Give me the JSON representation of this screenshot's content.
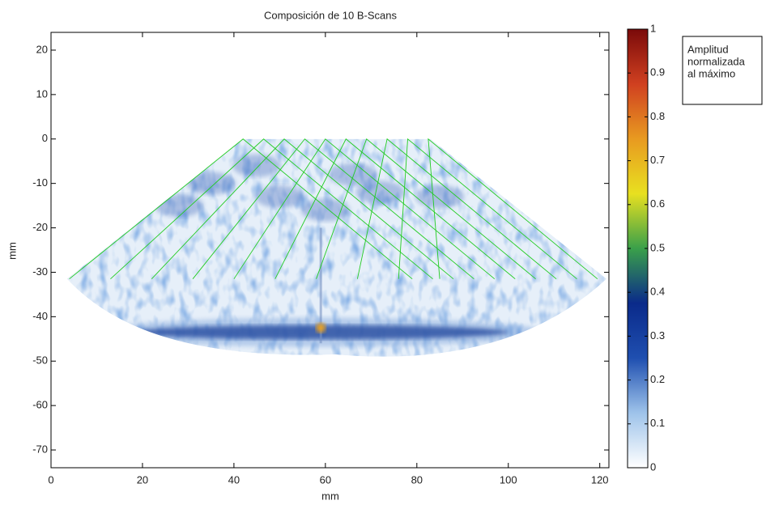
{
  "chart_data": {
    "type": "heatmap",
    "title": "Composición de 10 B-Scans",
    "xlabel": "mm",
    "ylabel": "mm",
    "xlim": [
      0,
      122
    ],
    "xticks": [
      0,
      20,
      40,
      60,
      80,
      100,
      120
    ],
    "ylim": [
      -74,
      24
    ],
    "yticks": [
      20,
      10,
      0,
      -10,
      -20,
      -30,
      -40,
      -50,
      -60,
      -70
    ],
    "colorbar": {
      "label": [
        "Amplitud",
        "normalizada",
        "al máximo"
      ],
      "lim": [
        0,
        1
      ],
      "ticks": [
        0,
        0.1,
        0.2,
        0.3,
        0.4,
        0.5,
        0.6,
        0.7,
        0.8,
        0.9,
        1
      ],
      "colors": [
        "#ffffff",
        "#9ec3ea",
        "#1f4fb0",
        "#0a2a8a",
        "#3aa04a",
        "#e8e020",
        "#e89a20",
        "#d04020",
        "#7a0a0a"
      ]
    },
    "line_color": "#22cc22"
  }
}
